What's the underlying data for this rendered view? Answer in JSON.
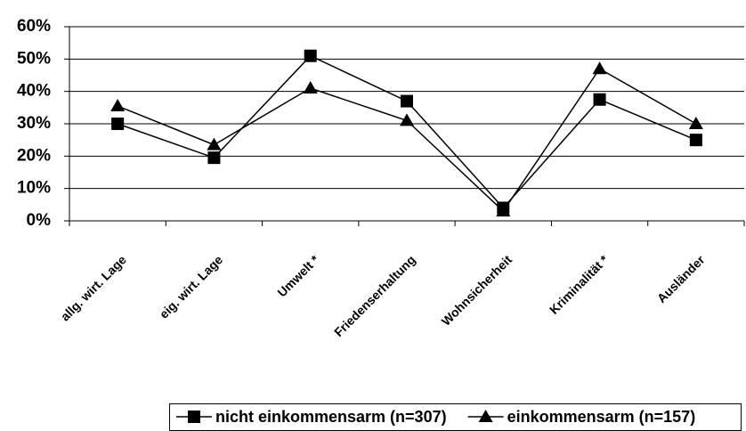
{
  "chart_data": {
    "type": "line",
    "categories": [
      "allg. wirt. Lage",
      "eig. wirt. Lage",
      "Umwelt *",
      "Friedenserhaltung",
      "Wohnsicherheit",
      "Kriminalität *",
      "Ausländer"
    ],
    "series": [
      {
        "name": "nicht einkommensarm (n=307)",
        "color": "#000000",
        "marker": "square",
        "values": [
          30,
          19.5,
          51,
          37,
          4,
          37.5,
          25
        ]
      },
      {
        "name": "einkommensarm (n=157)",
        "color": "#000000",
        "marker": "triangle",
        "values": [
          35.5,
          23.5,
          41,
          31,
          3,
          47,
          30
        ]
      }
    ],
    "ylim": [
      0,
      60
    ],
    "yticks": [
      {
        "value": 0,
        "label": "0%"
      },
      {
        "value": 10,
        "label": "10%"
      },
      {
        "value": 20,
        "label": "20%"
      },
      {
        "value": 30,
        "label": "30%"
      },
      {
        "value": 40,
        "label": "40%"
      },
      {
        "value": 50,
        "label": "50%"
      },
      {
        "value": 60,
        "label": "60%"
      }
    ],
    "grid": true,
    "legend": "bottom"
  }
}
